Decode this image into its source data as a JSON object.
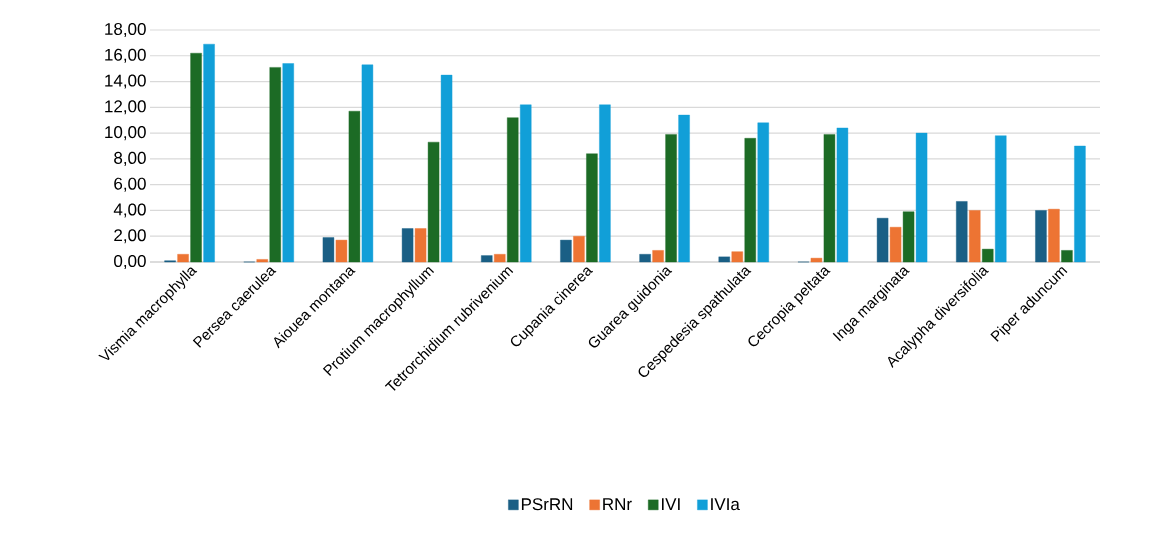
{
  "chart_data": {
    "type": "bar",
    "categories": [
      "Vismia macrophylla",
      "Persea caerulea",
      "Aiouea montana",
      "Protium macrophyllum",
      "Tetrorchidium rubrivenium",
      "Cupania cinerea",
      "Guarea guidonia",
      "Cespedesia spathulata",
      "Cecropia peltata",
      "Inga marginata",
      "Acalypha diversifolia",
      "Piper aduncum"
    ],
    "series": [
      {
        "name": "PSrRN",
        "color": "#1a5f85",
        "values": [
          0.1,
          0,
          1.9,
          2.6,
          0.5,
          1.7,
          0.6,
          0.4,
          0,
          3.4,
          4.7,
          4.0
        ]
      },
      {
        "name": "RNr",
        "color": "#ed7433",
        "values": [
          0.6,
          0.2,
          1.7,
          2.6,
          0.6,
          2.0,
          0.9,
          0.8,
          0.3,
          2.7,
          4.0,
          4.1
        ]
      },
      {
        "name": "IVI",
        "color": "#1c6b25",
        "values": [
          16.2,
          15.1,
          11.7,
          9.3,
          11.2,
          8.4,
          9.9,
          9.6,
          9.9,
          3.9,
          1.0,
          0.9
        ]
      },
      {
        "name": "IVIa",
        "color": "#119fd8",
        "values": [
          16.9,
          15.4,
          15.3,
          14.5,
          12.2,
          12.2,
          11.4,
          10.8,
          10.4,
          10.0,
          9.8,
          9.0
        ]
      }
    ],
    "ylim": [
      0,
      18
    ],
    "yticks": [
      {
        "value": 0,
        "label": "0,00"
      },
      {
        "value": 2,
        "label": "2,00"
      },
      {
        "value": 4,
        "label": "4,00"
      },
      {
        "value": 6,
        "label": "6,00"
      },
      {
        "value": 8,
        "label": "8,00"
      },
      {
        "value": 10,
        "label": "10,00"
      },
      {
        "value": 12,
        "label": "12,00"
      },
      {
        "value": 14,
        "label": "14,00"
      },
      {
        "value": 16,
        "label": "16,00"
      },
      {
        "value": 18,
        "label": "18,00"
      }
    ],
    "grid": "y",
    "legend": "bottom"
  }
}
